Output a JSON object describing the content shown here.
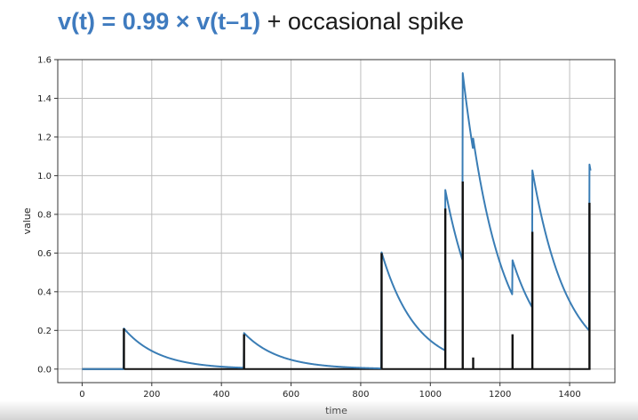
{
  "slide": {
    "title_formula": "v(t) = 0.99 × v(t–1)",
    "title_rest": " + occasional spike"
  },
  "colors": {
    "decay_line": "#3a7db5",
    "spike": "#111111",
    "grid": "#bdbdbd",
    "axes": "#333333"
  },
  "chart_data": {
    "type": "line",
    "title": "",
    "xlabel": "time",
    "ylabel": "value",
    "xlim": [
      -70,
      1530
    ],
    "ylim": [
      -0.07,
      1.6
    ],
    "xticks": [
      0,
      200,
      400,
      600,
      800,
      1000,
      1200,
      1400
    ],
    "yticks": [
      0.0,
      0.2,
      0.4,
      0.6,
      0.8,
      1.0,
      1.2,
      1.4,
      1.6
    ],
    "grid": true,
    "series": [
      {
        "type": "line",
        "values": []
      },
      {
        "type": "spikes",
        "values": []
      }
    ],
    "decay_factor": 0.99,
    "time_range": [
      0,
      1460
    ],
    "spikes": [
      {
        "t": 120,
        "height": 0.21
      },
      {
        "t": 465,
        "height": 0.18
      },
      {
        "t": 860,
        "height": 0.6
      },
      {
        "t": 1043,
        "height": 0.83
      },
      {
        "t": 1093,
        "height": 0.97
      },
      {
        "t": 1123,
        "height": 0.06
      },
      {
        "t": 1236,
        "height": 0.18
      },
      {
        "t": 1293,
        "height": 0.71
      },
      {
        "t": 1457,
        "height": 0.86
      }
    ]
  }
}
